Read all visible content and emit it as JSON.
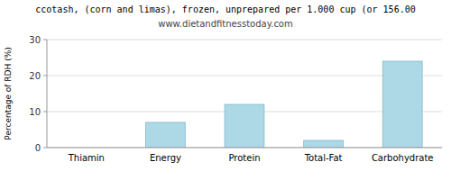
{
  "chart_data": {
    "type": "bar",
    "title": "ccotash, (corn and limas), frozen, unprepared per 1.000 cup (or 156.00",
    "subtitle": "www.dietandfitnesstoday.com",
    "categories": [
      "Thiamin",
      "Energy",
      "Protein",
      "Total-Fat",
      "Carbohydrate"
    ],
    "values": [
      0.0,
      7.0,
      12.0,
      2.0,
      24.0
    ],
    "color": "#add8e6",
    "ylabel": "Percentage of RDH (%)",
    "ylim": [
      0,
      30
    ],
    "yticks": [
      0,
      10,
      20,
      30
    ],
    "grid": true
  }
}
